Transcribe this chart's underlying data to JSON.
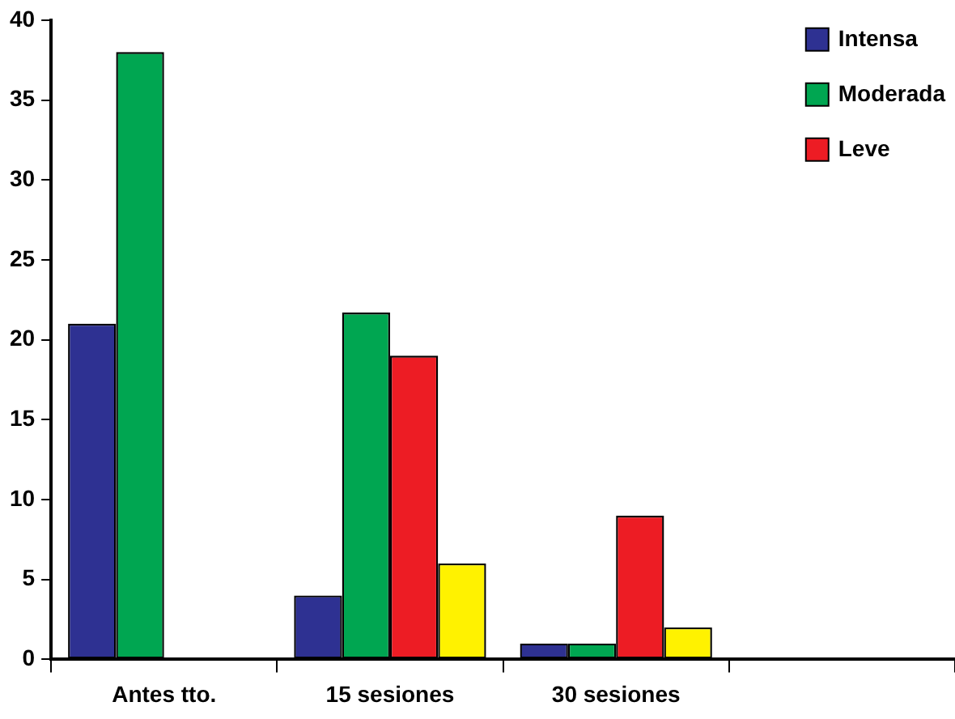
{
  "chart_data": {
    "type": "bar",
    "categories": [
      "Antes tto.",
      "15 sesiones",
      "30 sesiones",
      null
    ],
    "series": [
      {
        "name": "Intensa",
        "color": "#2e3192",
        "values": [
          21,
          4,
          1,
          null
        ]
      },
      {
        "name": "Moderada",
        "color": "#00a651",
        "values": [
          38,
          21.7,
          1,
          null
        ]
      },
      {
        "name": "Leve",
        "color": "#ed1c24",
        "values": [
          null,
          19,
          9,
          null
        ]
      },
      {
        "color": "#fff200",
        "values": [
          null,
          6,
          2,
          null
        ]
      }
    ],
    "ylim": [
      0,
      40
    ],
    "yticks": [
      0,
      5,
      10,
      15,
      20,
      25,
      30,
      35,
      40
    ],
    "grid": false,
    "legend": "top right"
  }
}
